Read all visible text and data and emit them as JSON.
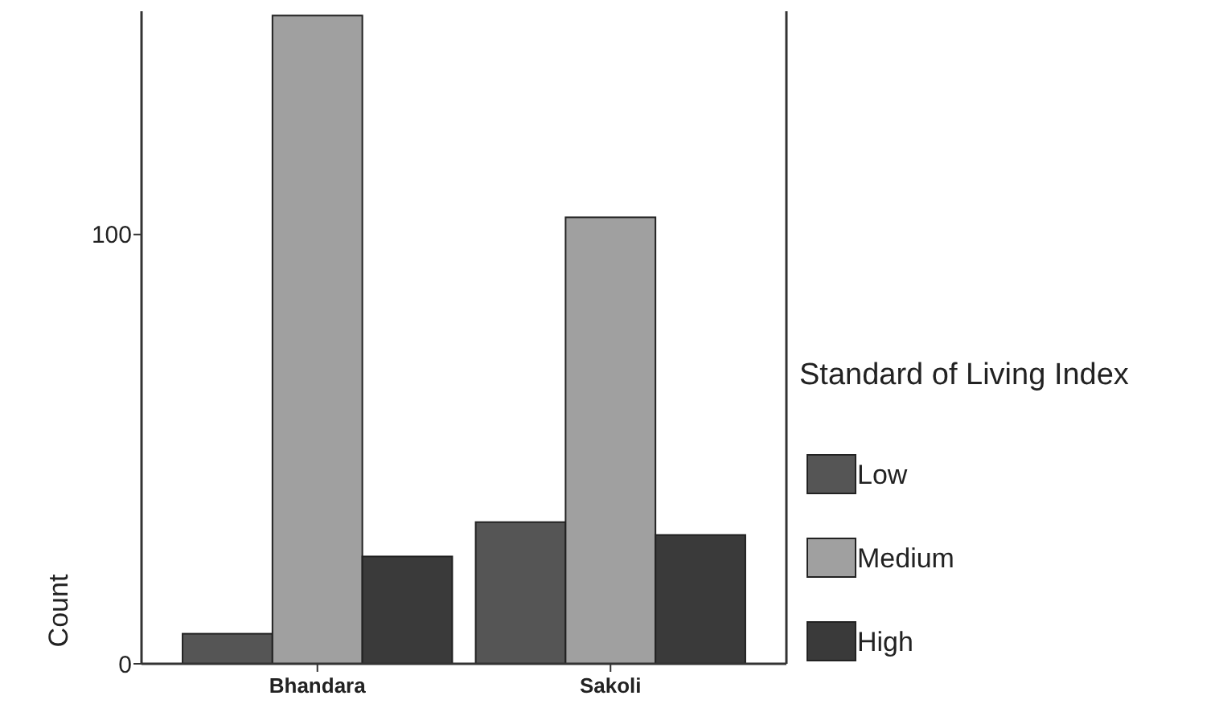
{
  "chart_data": {
    "type": "bar",
    "categories": [
      "Bhandara",
      "Sakoli"
    ],
    "ylabel": "Count",
    "legend_title": "Standard of Living Index",
    "legend": "right",
    "series": [
      {
        "name": "Low",
        "color": "#555555",
        "values": [
          7,
          33
        ]
      },
      {
        "name": "Medium",
        "color": "#a0a0a0",
        "values": [
          151,
          104
        ]
      },
      {
        "name": "High",
        "color": "#3a3a3a",
        "values": [
          25,
          30
        ]
      }
    ],
    "ylim": [
      0,
      152
    ],
    "yticks": [
      0,
      100
    ]
  }
}
